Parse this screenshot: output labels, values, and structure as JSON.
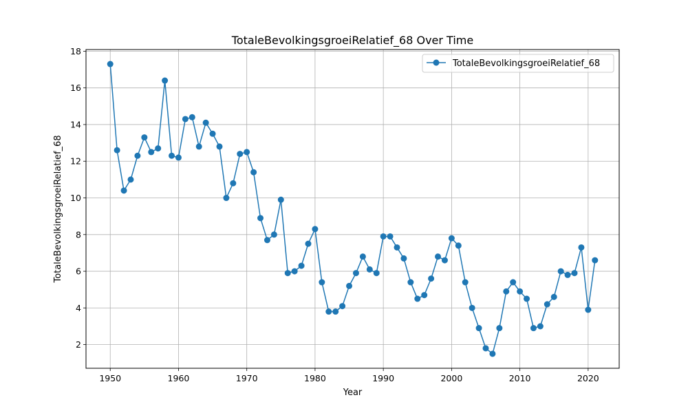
{
  "chart_data": {
    "type": "line",
    "title": "TotaleBevolkingsgroeiRelatief_68 Over Time",
    "xlabel": "Year",
    "ylabel": "TotaleBevolkingsgroeiRelatief_68",
    "xlim": [
      1946.45,
      2024.55
    ],
    "ylim": [
      0.71,
      18.09
    ],
    "xticks": [
      1950,
      1960,
      1970,
      1980,
      1990,
      2000,
      2010,
      2020
    ],
    "yticks": [
      2,
      4,
      6,
      8,
      10,
      12,
      14,
      16,
      18
    ],
    "grid": true,
    "legend_position": "top-right",
    "series": [
      {
        "name": "TotaleBevolkingsgroeiRelatief_68",
        "color": "#1f77b4",
        "marker": "circle",
        "x": [
          1950,
          1951,
          1952,
          1953,
          1954,
          1955,
          1956,
          1957,
          1958,
          1959,
          1960,
          1961,
          1962,
          1963,
          1964,
          1965,
          1966,
          1967,
          1968,
          1969,
          1970,
          1971,
          1972,
          1973,
          1974,
          1975,
          1976,
          1977,
          1978,
          1979,
          1980,
          1981,
          1982,
          1983,
          1984,
          1985,
          1986,
          1987,
          1988,
          1989,
          1990,
          1991,
          1992,
          1993,
          1994,
          1995,
          1996,
          1997,
          1998,
          1999,
          2000,
          2001,
          2002,
          2003,
          2004,
          2005,
          2006,
          2007,
          2008,
          2009,
          2010,
          2011,
          2012,
          2013,
          2014,
          2015,
          2016,
          2017,
          2018,
          2019,
          2020,
          2021
        ],
        "values": [
          17.3,
          12.6,
          10.4,
          11.0,
          12.3,
          13.3,
          12.5,
          12.7,
          16.4,
          12.3,
          12.2,
          14.3,
          14.4,
          12.8,
          14.1,
          13.5,
          12.8,
          10.0,
          10.8,
          12.4,
          12.5,
          11.4,
          8.9,
          7.7,
          8.0,
          9.9,
          5.9,
          6.0,
          6.3,
          7.5,
          8.3,
          5.4,
          3.8,
          3.8,
          4.1,
          5.2,
          5.9,
          6.8,
          6.1,
          5.9,
          7.9,
          7.9,
          7.3,
          6.7,
          5.4,
          4.5,
          4.7,
          5.6,
          6.8,
          6.6,
          7.8,
          7.4,
          5.4,
          4.0,
          2.9,
          1.8,
          1.5,
          2.9,
          4.9,
          5.4,
          4.9,
          4.5,
          2.9,
          3.0,
          4.2,
          4.6,
          6.0,
          5.8,
          5.9,
          7.3,
          3.9,
          6.6
        ]
      }
    ]
  }
}
